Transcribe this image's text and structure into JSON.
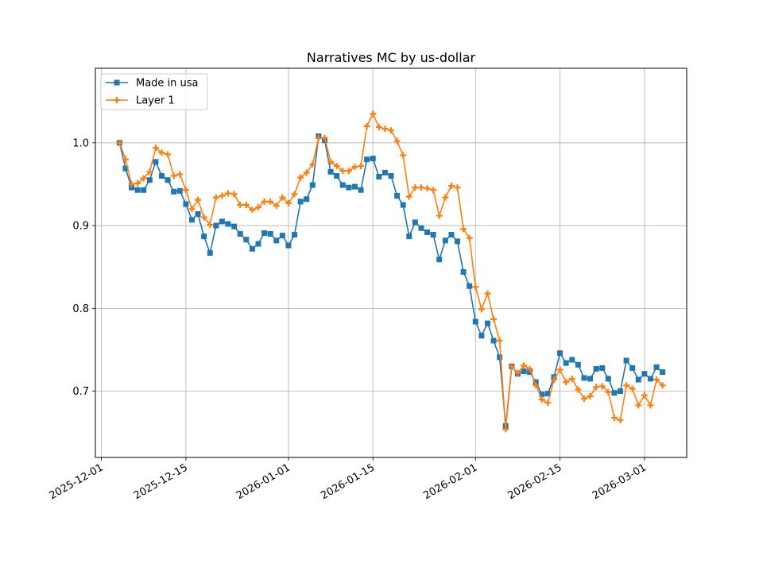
{
  "chart_data": {
    "type": "line",
    "title": "Narratives MC by us-dollar",
    "xlabel": "",
    "ylabel": "",
    "x_start": "2025-12-04",
    "x_step_days": 1,
    "xlim": [
      "2025-11-30",
      "2026-03-08"
    ],
    "ylim": [
      0.62,
      1.09
    ],
    "x_ticks": [
      "2025-12-01",
      "2025-12-15",
      "2026-01-01",
      "2026-01-15",
      "2026-02-01",
      "2026-02-15",
      "2026-03-01"
    ],
    "y_ticks": [
      0.7,
      0.8,
      0.9,
      1.0
    ],
    "y_tick_labels": [
      "0.7",
      "0.8",
      "0.9",
      "1.0"
    ],
    "grid": true,
    "legend_position": "top-left",
    "series": [
      {
        "name": "Made in usa",
        "color": "#1f77b4",
        "marker": "square",
        "values": [
          1.0,
          0.969,
          0.946,
          0.943,
          0.943,
          0.955,
          0.977,
          0.96,
          0.955,
          0.941,
          0.942,
          0.926,
          0.907,
          0.914,
          0.887,
          0.867,
          0.9,
          0.905,
          0.902,
          0.899,
          0.89,
          0.883,
          0.872,
          0.878,
          0.891,
          0.89,
          0.882,
          0.888,
          0.876,
          0.889,
          0.929,
          0.932,
          0.949,
          1.008,
          1.003,
          0.965,
          0.96,
          0.949,
          0.946,
          0.947,
          0.943,
          0.98,
          0.981,
          0.959,
          0.964,
          0.96,
          0.936,
          0.925,
          0.887,
          0.904,
          0.897,
          0.892,
          0.889,
          0.859,
          0.882,
          0.889,
          0.881,
          0.844,
          0.827,
          0.784,
          0.767,
          0.782,
          0.761,
          0.741,
          0.658,
          0.73,
          0.721,
          0.724,
          0.723,
          0.711,
          0.696,
          0.697,
          0.717,
          0.746,
          0.734,
          0.738,
          0.732,
          0.716,
          0.715,
          0.727,
          0.728,
          0.715,
          0.698,
          0.7,
          0.737,
          0.728,
          0.714,
          0.721,
          0.715,
          0.729,
          0.723
        ]
      },
      {
        "name": "Layer 1",
        "color": "#ff7f0e",
        "marker": "plus",
        "values": [
          1.0,
          0.98,
          0.95,
          0.951,
          0.957,
          0.965,
          0.994,
          0.988,
          0.986,
          0.96,
          0.962,
          0.943,
          0.92,
          0.931,
          0.91,
          0.901,
          0.934,
          0.936,
          0.939,
          0.938,
          0.925,
          0.925,
          0.919,
          0.922,
          0.929,
          0.929,
          0.924,
          0.934,
          0.927,
          0.938,
          0.958,
          0.964,
          0.974,
          1.006,
          1.006,
          0.977,
          0.972,
          0.966,
          0.966,
          0.971,
          0.972,
          1.02,
          1.035,
          1.019,
          1.017,
          1.015,
          1.002,
          0.985,
          0.935,
          0.946,
          0.946,
          0.945,
          0.943,
          0.912,
          0.934,
          0.948,
          0.946,
          0.896,
          0.885,
          0.826,
          0.799,
          0.818,
          0.787,
          0.761,
          0.654,
          0.73,
          0.722,
          0.731,
          0.727,
          0.707,
          0.69,
          0.686,
          0.714,
          0.726,
          0.711,
          0.715,
          0.702,
          0.691,
          0.694,
          0.705,
          0.706,
          0.699,
          0.668,
          0.665,
          0.707,
          0.703,
          0.683,
          0.695,
          0.683,
          0.714,
          0.707
        ]
      }
    ]
  }
}
